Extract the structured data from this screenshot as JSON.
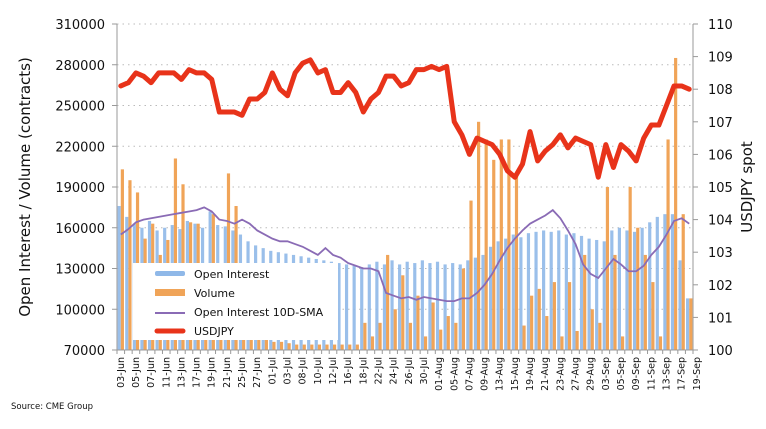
{
  "source_note": "Source: CME Group",
  "chart_data": {
    "type": "bar",
    "title": "",
    "ylabel": "Open Interest / Volume (contracts)",
    "y2label": "USDJPY spot",
    "ylim": [
      70000,
      310000
    ],
    "y2lim": [
      100,
      110
    ],
    "yticks": [
      "70000",
      "100000",
      "130000",
      "160000",
      "190000",
      "220000",
      "250000",
      "280000",
      "310000"
    ],
    "y2ticks": [
      "100",
      "101",
      "102",
      "103",
      "104",
      "105",
      "106",
      "107",
      "108",
      "109",
      "110"
    ],
    "grid": true,
    "legend_position": "bottom-left",
    "x_tick_labels": [
      "03-Jun",
      "05-Jun",
      "07-Jun",
      "11-Jun",
      "13-Jun",
      "17-Jun",
      "19-Jun",
      "21-Jun",
      "25-Jun",
      "27-Jun",
      "01-Jul",
      "03-Jul",
      "08-Jul",
      "10-Jul",
      "12-Jul",
      "16-Jul",
      "18-Jul",
      "22-Jul",
      "24-Jul",
      "26-Jul",
      "30-Jul",
      "01-Aug",
      "05-Aug",
      "07-Aug",
      "09-Aug",
      "13-Aug",
      "15-Aug",
      "19-Aug",
      "21-Aug",
      "23-Aug",
      "27-Aug",
      "29-Aug",
      "03-Sep",
      "05-Sep",
      "09-Sep",
      "11-Sep",
      "13-Sep",
      "17-Sep",
      "19-Sep"
    ],
    "n_points": 76,
    "series": [
      {
        "name": "Open Interest",
        "type": "bar",
        "axis": "left",
        "color": "#8fb8e8",
        "values": [
          176000,
          168000,
          163000,
          160000,
          165000,
          158000,
          160000,
          162000,
          159000,
          165000,
          163000,
          160000,
          172000,
          162000,
          161000,
          158000,
          155000,
          150000,
          147000,
          145000,
          143000,
          142000,
          141000,
          140000,
          139000,
          138000,
          137000,
          136000,
          135000,
          134000,
          133000,
          132000,
          131000,
          133000,
          135000,
          133000,
          136000,
          133000,
          135000,
          134000,
          136000,
          134000,
          135000,
          133000,
          134000,
          133000,
          136000,
          138000,
          140000,
          146000,
          150000,
          152000,
          155000,
          153000,
          156000,
          157000,
          158000,
          157000,
          158000,
          155000,
          156000,
          154000,
          152000,
          151000,
          150000,
          158000,
          160000,
          158000,
          157000,
          160000,
          164000,
          168000,
          170000,
          170000,
          136000,
          108000
        ],
        "legend_label": "Open Interest"
      },
      {
        "name": "Volume",
        "type": "bar",
        "axis": "left",
        "color": "#f0a458",
        "values": [
          203000,
          195000,
          186000,
          152000,
          163000,
          140000,
          151000,
          211000,
          192000,
          164000,
          163000,
          80000,
          170000,
          102000,
          200000,
          176000,
          130000,
          80000,
          80000,
          78000,
          76000,
          76000,
          75000,
          74000,
          74000,
          74000,
          74000,
          74000,
          74000,
          74000,
          74000,
          74000,
          90000,
          80000,
          90000,
          140000,
          100000,
          125000,
          90000,
          110000,
          80000,
          105000,
          85000,
          95000,
          90000,
          130000,
          180000,
          238000,
          225000,
          210000,
          225000,
          225000,
          200000,
          88000,
          110000,
          115000,
          95000,
          120000,
          80000,
          120000,
          84000,
          140000,
          100000,
          90000,
          190000,
          140000,
          80000,
          190000,
          160000,
          140000,
          120000,
          80000,
          225000,
          285000,
          170000,
          108000
        ],
        "legend_label": "Volume"
      },
      {
        "name": "Open Interest 10D-SMA",
        "type": "line",
        "axis": "left",
        "color": "#8a6bb5",
        "values": [
          155000,
          159000,
          164000,
          166000,
          167000,
          168000,
          169000,
          170000,
          171000,
          172000,
          173000,
          175000,
          172000,
          166000,
          165000,
          163000,
          166000,
          163000,
          158000,
          155000,
          152000,
          150000,
          150000,
          148000,
          146000,
          143000,
          140000,
          145000,
          140000,
          138000,
          134000,
          132000,
          130000,
          130000,
          128000,
          112000,
          110000,
          108000,
          109000,
          107000,
          109000,
          108000,
          107000,
          106000,
          106000,
          108000,
          108000,
          112000,
          118000,
          126000,
          136000,
          145000,
          152000,
          158000,
          163000,
          166000,
          169000,
          173000,
          167000,
          158000,
          148000,
          133000,
          126000,
          123000,
          130000,
          137000,
          133000,
          128000,
          128000,
          132000,
          140000,
          146000,
          155000,
          165000,
          167000,
          163000
        ],
        "legend_label": "Open Interest 10D-SMA"
      },
      {
        "name": "USDJPY",
        "type": "line",
        "axis": "right",
        "color": "#e8331a",
        "values": [
          108.1,
          108.2,
          108.5,
          108.4,
          108.2,
          108.5,
          108.5,
          108.5,
          108.3,
          108.6,
          108.5,
          108.5,
          108.3,
          107.3,
          107.3,
          107.3,
          107.2,
          107.7,
          107.7,
          107.9,
          108.5,
          108.0,
          107.8,
          108.5,
          108.8,
          108.9,
          108.5,
          108.6,
          107.9,
          107.9,
          108.2,
          107.9,
          107.3,
          107.7,
          107.9,
          108.4,
          108.4,
          108.1,
          108.2,
          108.6,
          108.6,
          108.7,
          108.6,
          108.7,
          107.0,
          106.6,
          106.0,
          106.5,
          106.4,
          106.3,
          106.0,
          105.5,
          105.3,
          105.7,
          106.7,
          105.8,
          106.1,
          106.3,
          106.6,
          106.2,
          106.5,
          106.4,
          106.3,
          105.3,
          106.3,
          105.6,
          106.3,
          106.1,
          105.8,
          106.5,
          106.9,
          106.9,
          107.5,
          108.1,
          108.1,
          108.0
        ]
      }
    ]
  },
  "legend": {
    "items": [
      "Open Interest",
      "Volume",
      "Open Interest 10D-SMA",
      "USDJPY"
    ]
  }
}
